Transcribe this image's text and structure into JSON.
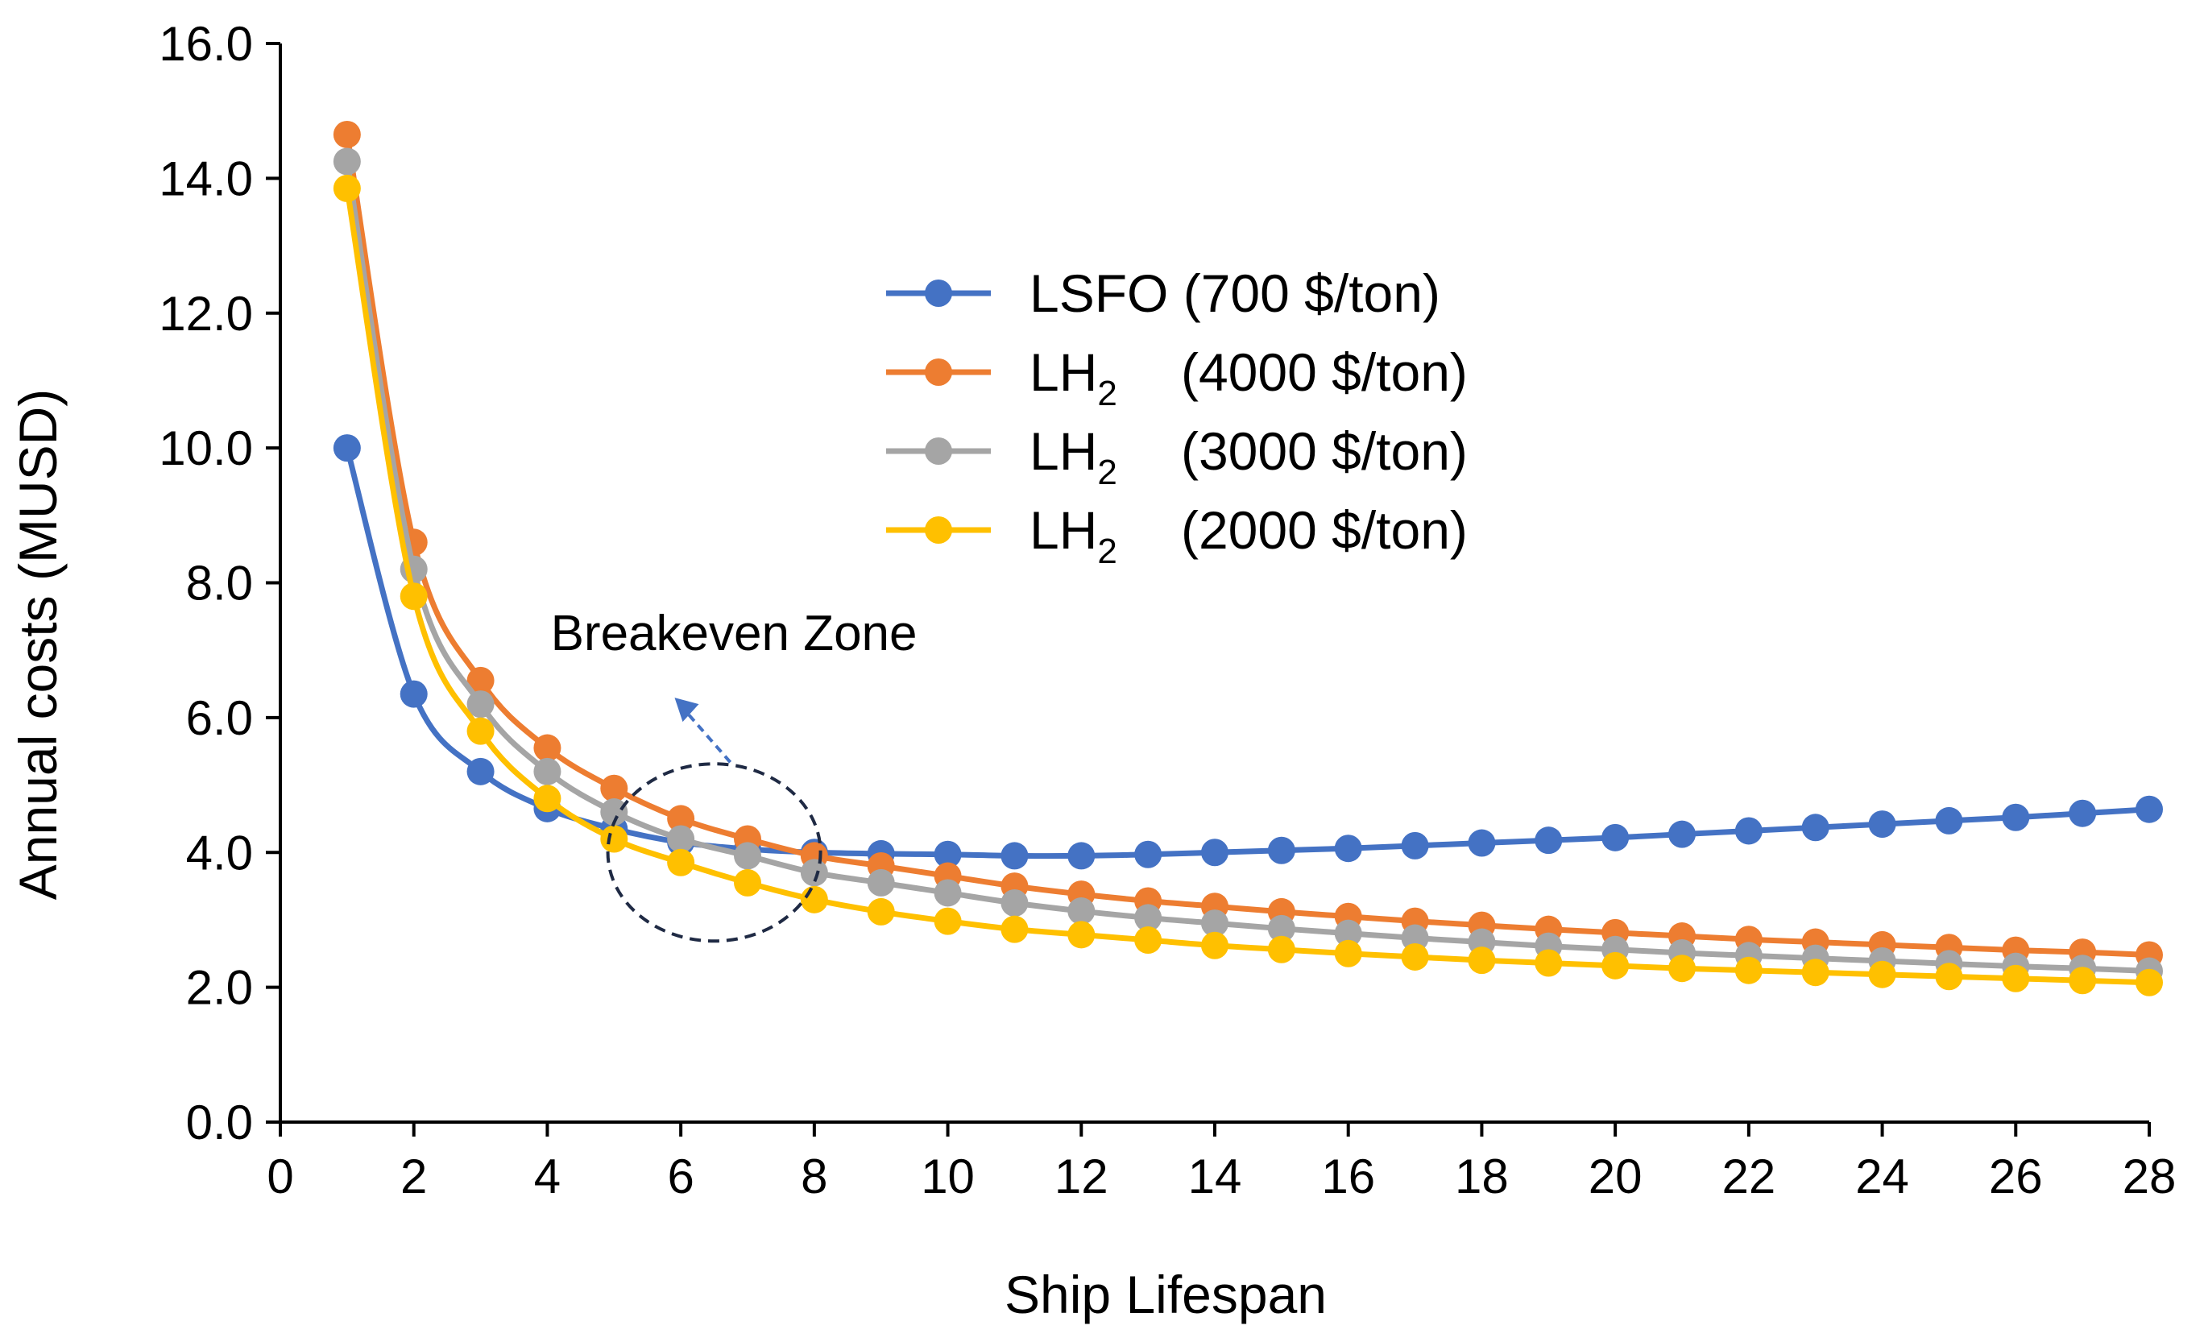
{
  "chart_data": {
    "type": "line",
    "xlabel": "Ship Lifespan",
    "ylabel": "Annual costs (MUSD)",
    "xlim": [
      0,
      28
    ],
    "ylim": [
      0,
      16
    ],
    "xticks": [
      "0",
      "2",
      "4",
      "6",
      "8",
      "10",
      "12",
      "14",
      "16",
      "18",
      "20",
      "22",
      "24",
      "26",
      "28"
    ],
    "yticks": [
      "0.0",
      "2.0",
      "4.0",
      "6.0",
      "8.0",
      "10.0",
      "12.0",
      "14.0",
      "16.0"
    ],
    "grid": false,
    "legend_position": "top-center",
    "x": [
      1,
      2,
      3,
      4,
      5,
      6,
      7,
      8,
      9,
      10,
      11,
      12,
      13,
      14,
      15,
      16,
      17,
      18,
      19,
      20,
      21,
      22,
      23,
      24,
      25,
      26,
      27,
      28
    ],
    "series": [
      {
        "name": "LSFO (700 $/ton)",
        "legend_main": "LSFO",
        "legend_sub": "",
        "legend_price": "(700 $/ton)",
        "color": "#4472C4",
        "values": [
          10.0,
          6.35,
          5.2,
          4.65,
          4.35,
          4.15,
          4.05,
          4.0,
          3.98,
          3.97,
          3.95,
          3.95,
          3.97,
          4.0,
          4.03,
          4.06,
          4.1,
          4.14,
          4.18,
          4.22,
          4.27,
          4.32,
          4.37,
          4.42,
          4.47,
          4.52,
          4.58,
          4.64
        ]
      },
      {
        "name": "LH2 (4000 $/ton)",
        "legend_main": "LH",
        "legend_sub": "2",
        "legend_price": "(4000 $/ton)",
        "color": "#ED7D31",
        "values": [
          14.65,
          8.6,
          6.55,
          5.55,
          4.95,
          4.5,
          4.2,
          3.95,
          3.8,
          3.65,
          3.5,
          3.38,
          3.28,
          3.2,
          3.12,
          3.05,
          2.98,
          2.92,
          2.86,
          2.81,
          2.76,
          2.71,
          2.67,
          2.63,
          2.59,
          2.55,
          2.52,
          2.48
        ]
      },
      {
        "name": "LH2 (3000 $/ton)",
        "legend_main": "LH",
        "legend_sub": "2",
        "legend_price": "(3000 $/ton)",
        "color": "#A5A5A5",
        "values": [
          14.25,
          8.2,
          6.2,
          5.2,
          4.6,
          4.2,
          3.95,
          3.7,
          3.55,
          3.4,
          3.25,
          3.13,
          3.03,
          2.95,
          2.87,
          2.8,
          2.73,
          2.67,
          2.61,
          2.56,
          2.51,
          2.47,
          2.43,
          2.39,
          2.35,
          2.31,
          2.28,
          2.24
        ]
      },
      {
        "name": "LH2 (2000 $/ton)",
        "legend_main": "LH",
        "legend_sub": "2",
        "legend_price": "(2000 $/ton)",
        "color": "#FFC000",
        "values": [
          13.85,
          7.8,
          5.8,
          4.8,
          4.2,
          3.85,
          3.55,
          3.3,
          3.12,
          2.98,
          2.86,
          2.78,
          2.7,
          2.62,
          2.56,
          2.5,
          2.45,
          2.4,
          2.36,
          2.32,
          2.28,
          2.25,
          2.22,
          2.19,
          2.16,
          2.13,
          2.1,
          2.07
        ]
      }
    ],
    "annotations": [
      {
        "text": "Breakeven Zone",
        "x": 6.5,
        "y": 4.0
      }
    ]
  }
}
